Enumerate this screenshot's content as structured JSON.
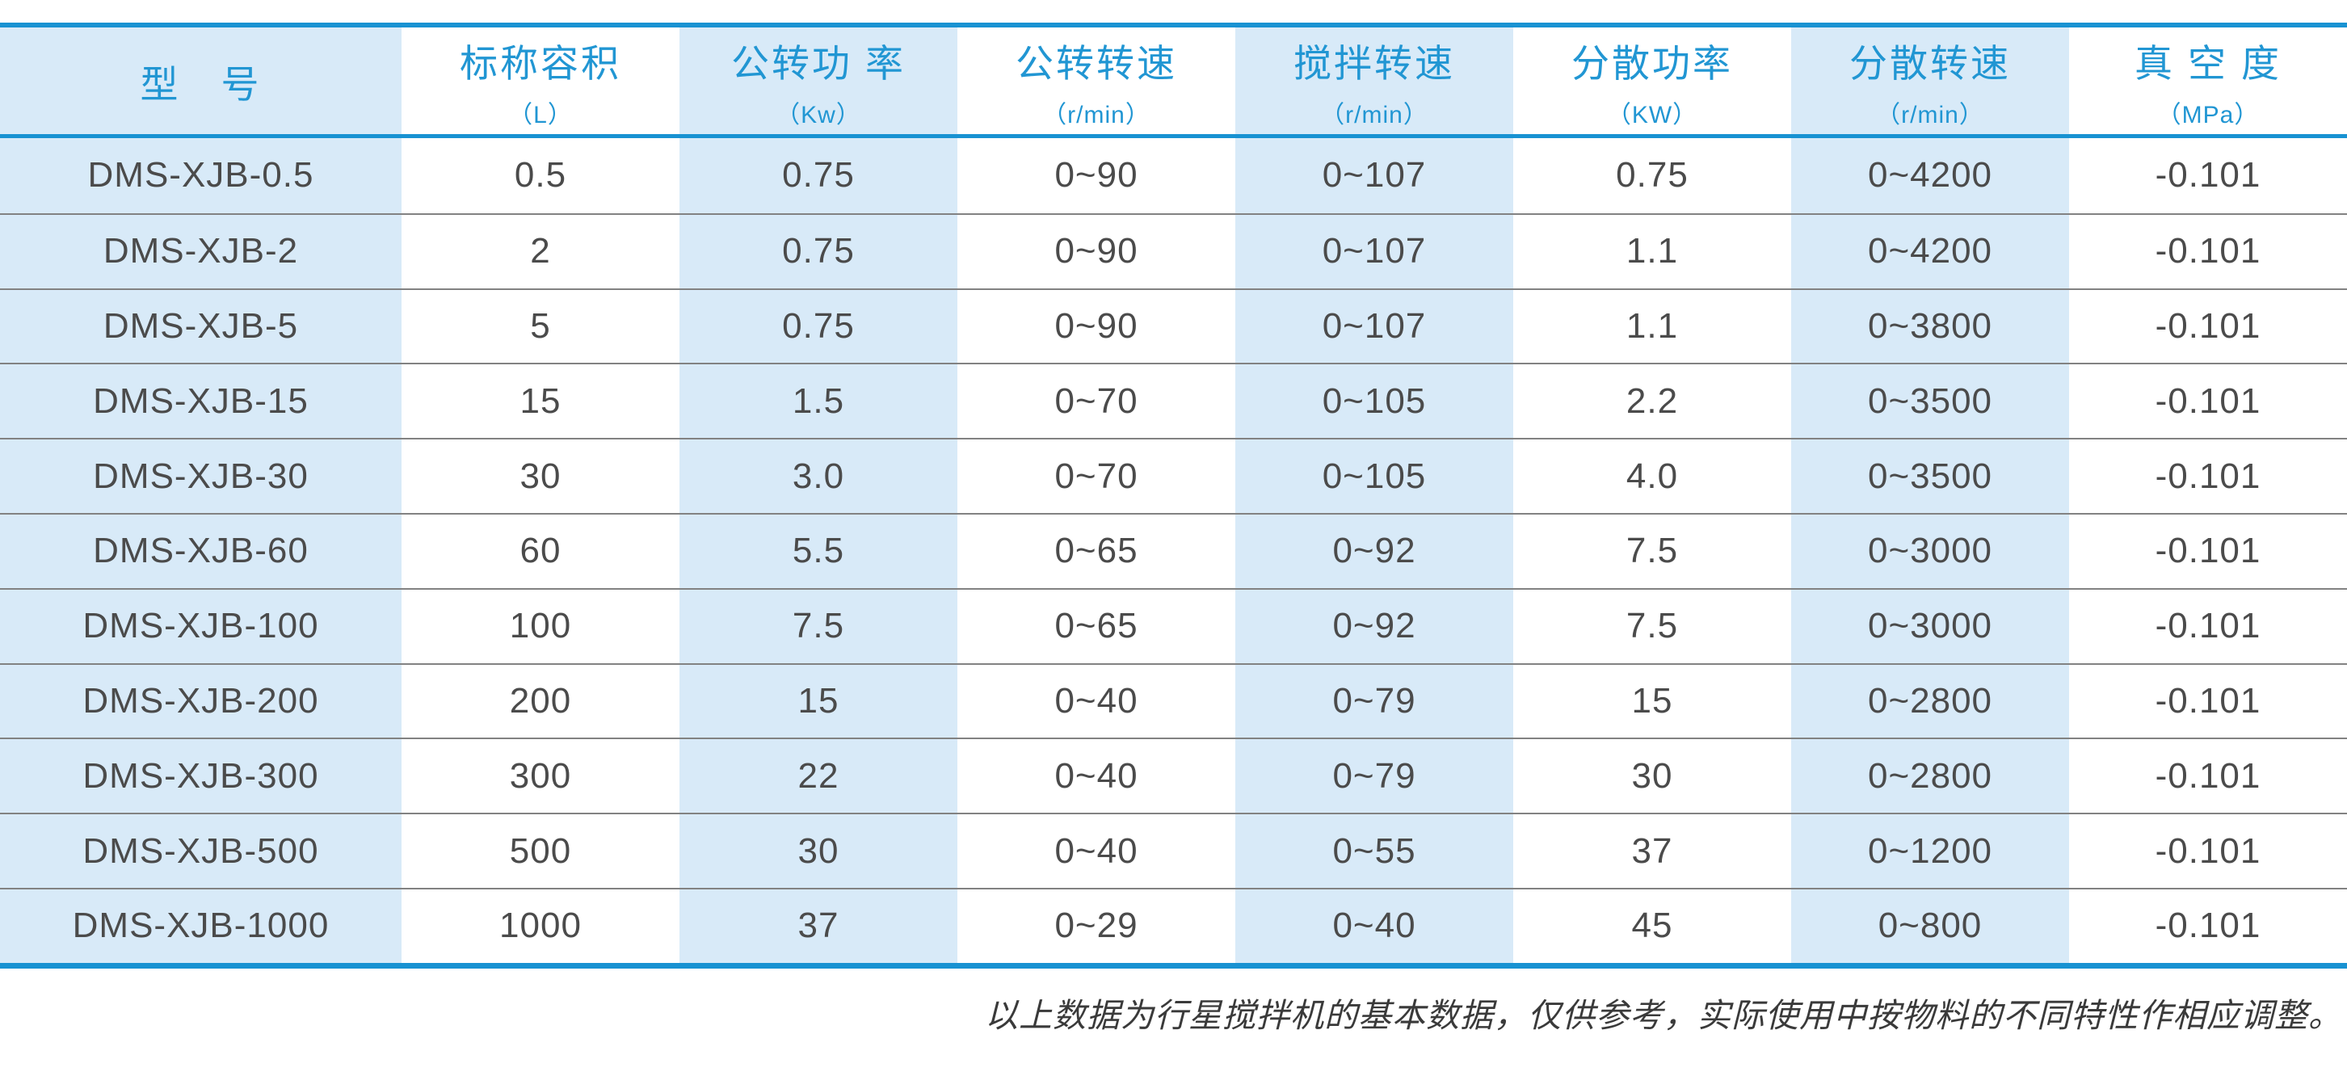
{
  "colors": {
    "accent": "#1892d2",
    "htext": "#2196d3",
    "shade": "#d8eaf8",
    "btext": "#4b4b4b",
    "sep": "#828282"
  },
  "table": {
    "columns": [
      {
        "title": "型　号",
        "unit": ""
      },
      {
        "title": "标称容积",
        "unit": "（L）"
      },
      {
        "title": "公转功 率",
        "unit": "（Kw）"
      },
      {
        "title": "公转转速",
        "unit": "（r/min）"
      },
      {
        "title": "搅拌转速",
        "unit": "（r/min）"
      },
      {
        "title": "分散功率",
        "unit": "（KW）"
      },
      {
        "title": "分散转速",
        "unit": "（r/min）"
      },
      {
        "title": "真 空 度",
        "unit": "（MPa）"
      }
    ],
    "rows": [
      [
        "DMS-XJB-0.5",
        "0.5",
        "0.75",
        "0~90",
        "0~107",
        "0.75",
        "0~4200",
        "-0.101"
      ],
      [
        "DMS-XJB-2",
        "2",
        "0.75",
        "0~90",
        "0~107",
        "1.1",
        "0~4200",
        "-0.101"
      ],
      [
        "DMS-XJB-5",
        "5",
        "0.75",
        "0~90",
        "0~107",
        "1.1",
        "0~3800",
        "-0.101"
      ],
      [
        "DMS-XJB-15",
        "15",
        "1.5",
        "0~70",
        "0~105",
        "2.2",
        "0~3500",
        "-0.101"
      ],
      [
        "DMS-XJB-30",
        "30",
        "3.0",
        "0~70",
        "0~105",
        "4.0",
        "0~3500",
        "-0.101"
      ],
      [
        "DMS-XJB-60",
        "60",
        "5.5",
        "0~65",
        "0~92",
        "7.5",
        "0~3000",
        "-0.101"
      ],
      [
        "DMS-XJB-100",
        "100",
        "7.5",
        "0~65",
        "0~92",
        "7.5",
        "0~3000",
        "-0.101"
      ],
      [
        "DMS-XJB-200",
        "200",
        "15",
        "0~40",
        "0~79",
        "15",
        "0~2800",
        "-0.101"
      ],
      [
        "DMS-XJB-300",
        "300",
        "22",
        "0~40",
        "0~79",
        "30",
        "0~2800",
        "-0.101"
      ],
      [
        "DMS-XJB-500",
        "500",
        "30",
        "0~40",
        "0~55",
        "37",
        "0~1200",
        "-0.101"
      ],
      [
        "DMS-XJB-1000",
        "1000",
        "37",
        "0~29",
        "0~40",
        "45",
        "0~800",
        "-0.101"
      ]
    ]
  },
  "footnote": "以上数据为行星搅拌机的基本数据，仅供参考，实际使用中按物料的不同特性作相应调整。"
}
